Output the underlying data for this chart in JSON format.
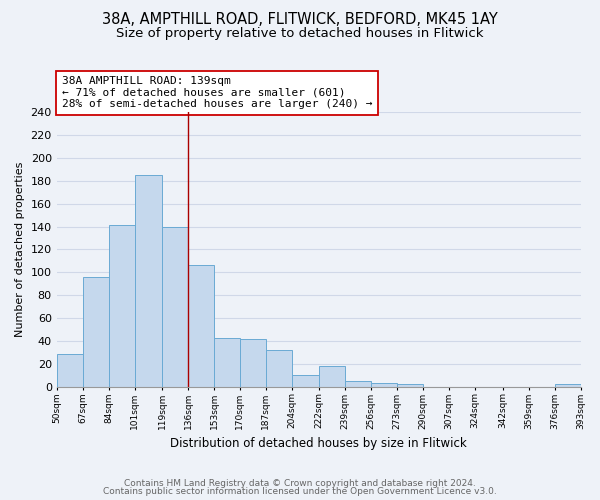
{
  "title1": "38A, AMPTHILL ROAD, FLITWICK, BEDFORD, MK45 1AY",
  "title2": "Size of property relative to detached houses in Flitwick",
  "xlabel": "Distribution of detached houses by size in Flitwick",
  "ylabel": "Number of detached properties",
  "bar_edges": [
    50,
    67,
    84,
    101,
    119,
    136,
    153,
    170,
    187,
    204,
    222,
    239,
    256,
    273,
    290,
    307,
    324,
    342,
    359,
    376,
    393
  ],
  "bar_heights": [
    29,
    96,
    141,
    185,
    140,
    106,
    43,
    42,
    32,
    10,
    18,
    5,
    3,
    2,
    0,
    0,
    0,
    0,
    0,
    2
  ],
  "bar_color": "#c5d8ed",
  "bar_edge_color": "#6aaad4",
  "vline_x": 136,
  "vline_color": "#aa0000",
  "annotation_line1": "38A AMPTHILL ROAD: 139sqm",
  "annotation_line2": "← 71% of detached houses are smaller (601)",
  "annotation_line3": "28% of semi-detached houses are larger (240) →",
  "ylim": [
    0,
    240
  ],
  "yticks": [
    0,
    20,
    40,
    60,
    80,
    100,
    120,
    140,
    160,
    180,
    200,
    220,
    240
  ],
  "tick_labels": [
    "50sqm",
    "67sqm",
    "84sqm",
    "101sqm",
    "119sqm",
    "136sqm",
    "153sqm",
    "170sqm",
    "187sqm",
    "204sqm",
    "222sqm",
    "239sqm",
    "256sqm",
    "273sqm",
    "290sqm",
    "307sqm",
    "324sqm",
    "342sqm",
    "359sqm",
    "376sqm",
    "393sqm"
  ],
  "footer_line1": "Contains HM Land Registry data © Crown copyright and database right 2024.",
  "footer_line2": "Contains public sector information licensed under the Open Government Licence v3.0.",
  "bg_color": "#eef2f8",
  "grid_color": "#d0d8e8",
  "title_fontsize": 10.5,
  "subtitle_fontsize": 9.5
}
